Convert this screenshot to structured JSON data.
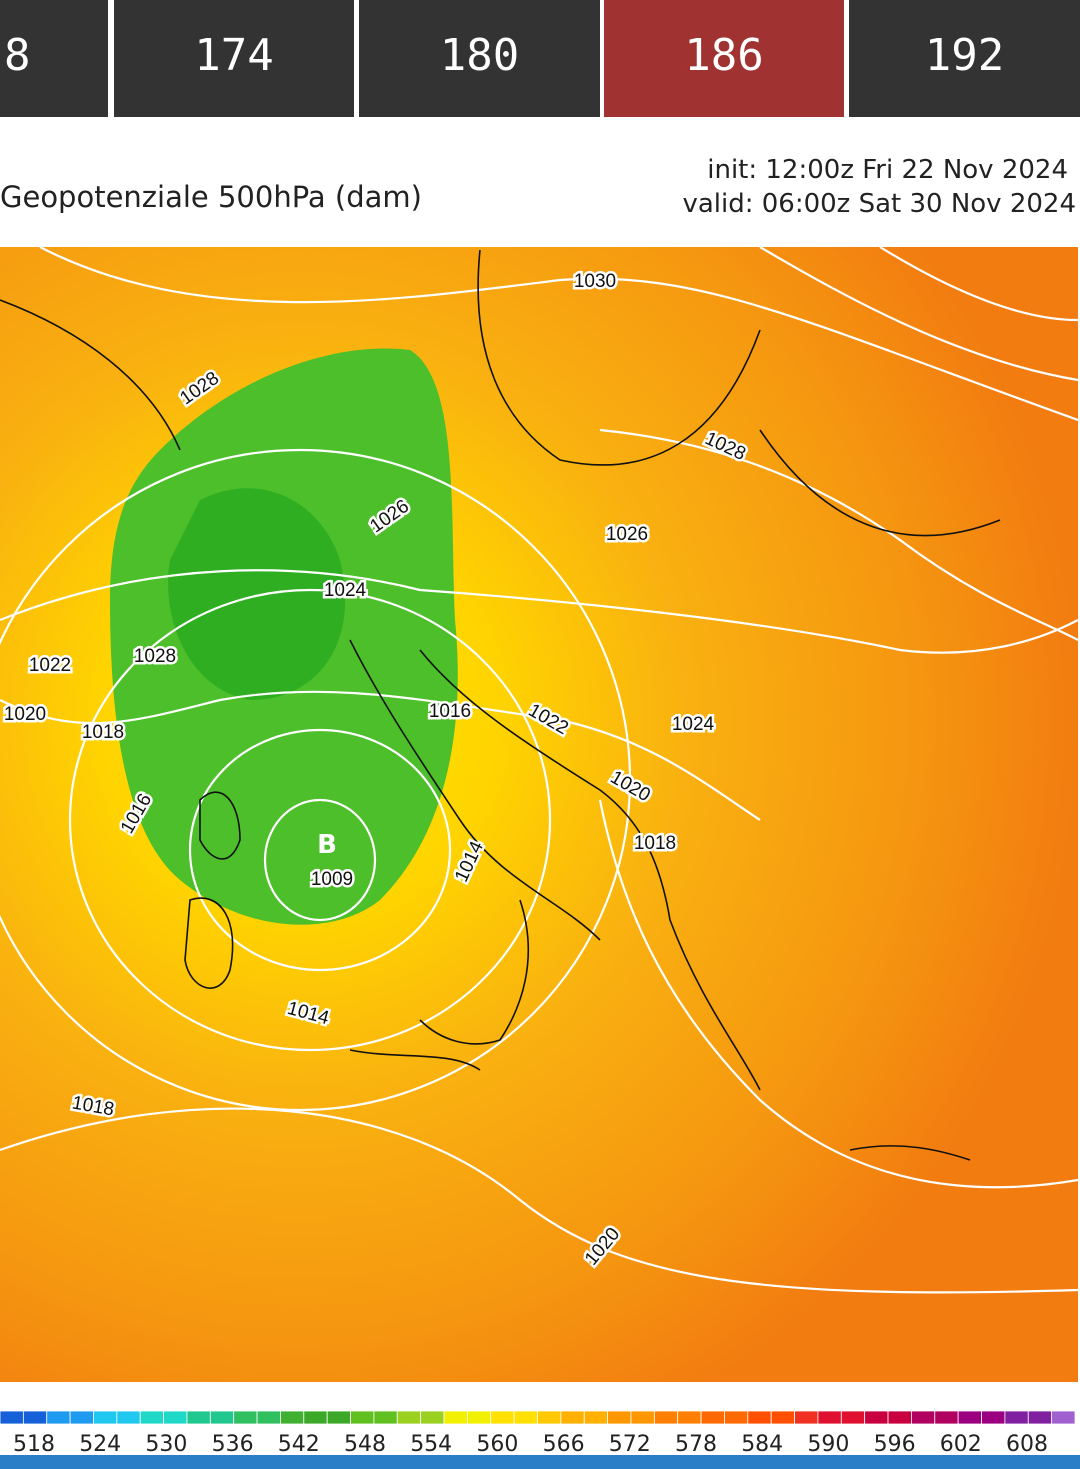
{
  "tabs": [
    "8",
    "174",
    "180",
    "186",
    "192"
  ],
  "active_tab": "186",
  "title": "Geopotenziale 500hPa (dam)",
  "init": "init: 12:00z Fri 22 Nov 2024",
  "valid": "valid: 06:00z Sat 30 Nov 2024",
  "contour_labels": [
    "1030",
    "1028",
    "1028",
    "1026",
    "1026",
    "1024",
    "1028",
    "1022",
    "1020",
    "1018",
    "1016",
    "1022",
    "1024",
    "1016",
    "1020",
    "1018",
    "1014",
    "1009",
    "1014",
    "1018",
    "1020"
  ],
  "low_marker": "B",
  "colorbar_labels": [
    "518",
    "524",
    "530",
    "536",
    "542",
    "548",
    "554",
    "560",
    "566",
    "572",
    "578",
    "584",
    "590",
    "596",
    "602",
    "608"
  ]
}
